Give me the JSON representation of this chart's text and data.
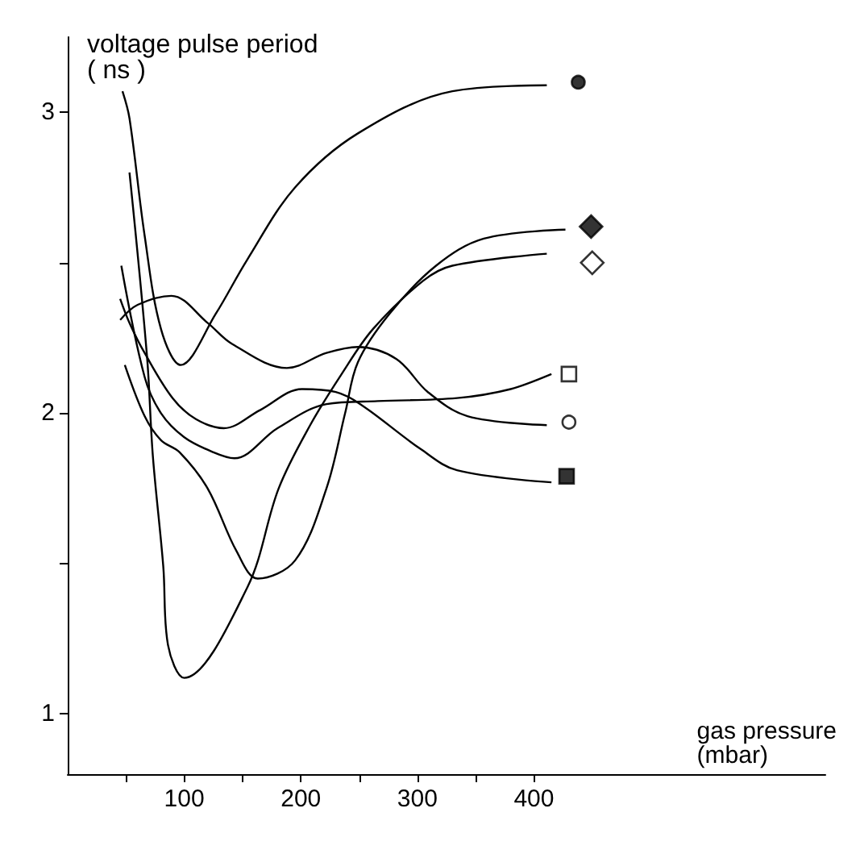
{
  "chart_data": {
    "type": "line",
    "xlabel": "gas pressure\n(mbar)",
    "ylabel": "voltage pulse period\n( ns )",
    "xlim": [
      0,
      650
    ],
    "ylim": [
      0.8,
      3.25
    ],
    "xticks": [
      {
        "value": 50,
        "label": null
      },
      100,
      {
        "value": 150,
        "label": null
      },
      200,
      {
        "value": 250,
        "label": null
      },
      300,
      {
        "value": 350,
        "label": null
      },
      400
    ],
    "yticks": [
      1,
      {
        "value": 1.5,
        "label": null
      },
      2,
      {
        "value": 2.5,
        "label": null
      },
      3
    ],
    "grid": false,
    "series": [
      {
        "color": "#000000",
        "x": [
          47,
          53,
          66,
          80,
          97,
          127,
          154,
          195,
          249,
          330,
          411
        ],
        "values": [
          3.07,
          2.98,
          2.59,
          2.28,
          2.16,
          2.33,
          2.51,
          2.75,
          2.93,
          3.07,
          3.09
        ]
      },
      {
        "type": "scatter",
        "color": "#000000",
        "marker": "circle",
        "x": [
          438
        ],
        "values": [
          3.1
        ]
      },
      {
        "color": "#000000",
        "x": [
          49,
          66,
          80,
          96,
          120,
          145,
          163,
          195,
          222,
          238,
          249,
          276,
          316,
          357,
          427
        ],
        "values": [
          2.16,
          1.99,
          1.91,
          1.87,
          1.75,
          1.54,
          1.45,
          1.51,
          1.75,
          2.0,
          2.17,
          2.33,
          2.49,
          2.58,
          2.61
        ]
      },
      {
        "type": "scatter",
        "color": "#000000",
        "marker": "diamond",
        "x": [
          449
        ],
        "values": [
          2.62
        ]
      },
      {
        "color": "#000000",
        "x": [
          53,
          68,
          73,
          82,
          86,
          100,
          154,
          181,
          208,
          235,
          262,
          305,
          330,
          411
        ],
        "values": [
          2.8,
          2.19,
          1.86,
          1.49,
          1.23,
          1.12,
          1.42,
          1.75,
          1.96,
          2.13,
          2.28,
          2.44,
          2.49,
          2.53
        ]
      },
      {
        "type": "scatter",
        "color": "#ffffff",
        "marker": "diamond",
        "x": [
          450
        ],
        "values": [
          2.5
        ]
      },
      {
        "color": "#000000",
        "x": [
          46,
          66,
          80,
          100,
          125,
          143,
          180,
          222,
          266,
          334,
          380,
          415
        ],
        "values": [
          2.49,
          2.12,
          2.0,
          1.92,
          1.87,
          1.85,
          1.95,
          2.03,
          2.04,
          2.05,
          2.08,
          2.13
        ]
      },
      {
        "type": "scatter",
        "color": "#ffffff",
        "marker": "square",
        "x": [
          430
        ],
        "values": [
          2.13
        ]
      },
      {
        "color": "#000000",
        "x": [
          45,
          60,
          89,
          120,
          141,
          188,
          222,
          249,
          282,
          309,
          343,
          411
        ],
        "values": [
          2.31,
          2.36,
          2.39,
          2.3,
          2.23,
          2.15,
          2.2,
          2.22,
          2.18,
          2.07,
          1.99,
          1.96
        ]
      },
      {
        "type": "scatter",
        "color": "#ffffff",
        "marker": "circle",
        "x": [
          430
        ],
        "values": [
          1.97
        ]
      },
      {
        "color": "#000000",
        "x": [
          45,
          53,
          66,
          90,
          110,
          134,
          165,
          201,
          230,
          251,
          303,
          334,
          415
        ],
        "values": [
          2.38,
          2.3,
          2.2,
          2.05,
          1.98,
          1.95,
          2.01,
          2.08,
          2.07,
          2.03,
          1.88,
          1.81,
          1.77
        ]
      },
      {
        "type": "scatter",
        "color": "#000000",
        "marker": "square",
        "x": [
          428
        ],
        "values": [
          1.79
        ]
      }
    ]
  }
}
